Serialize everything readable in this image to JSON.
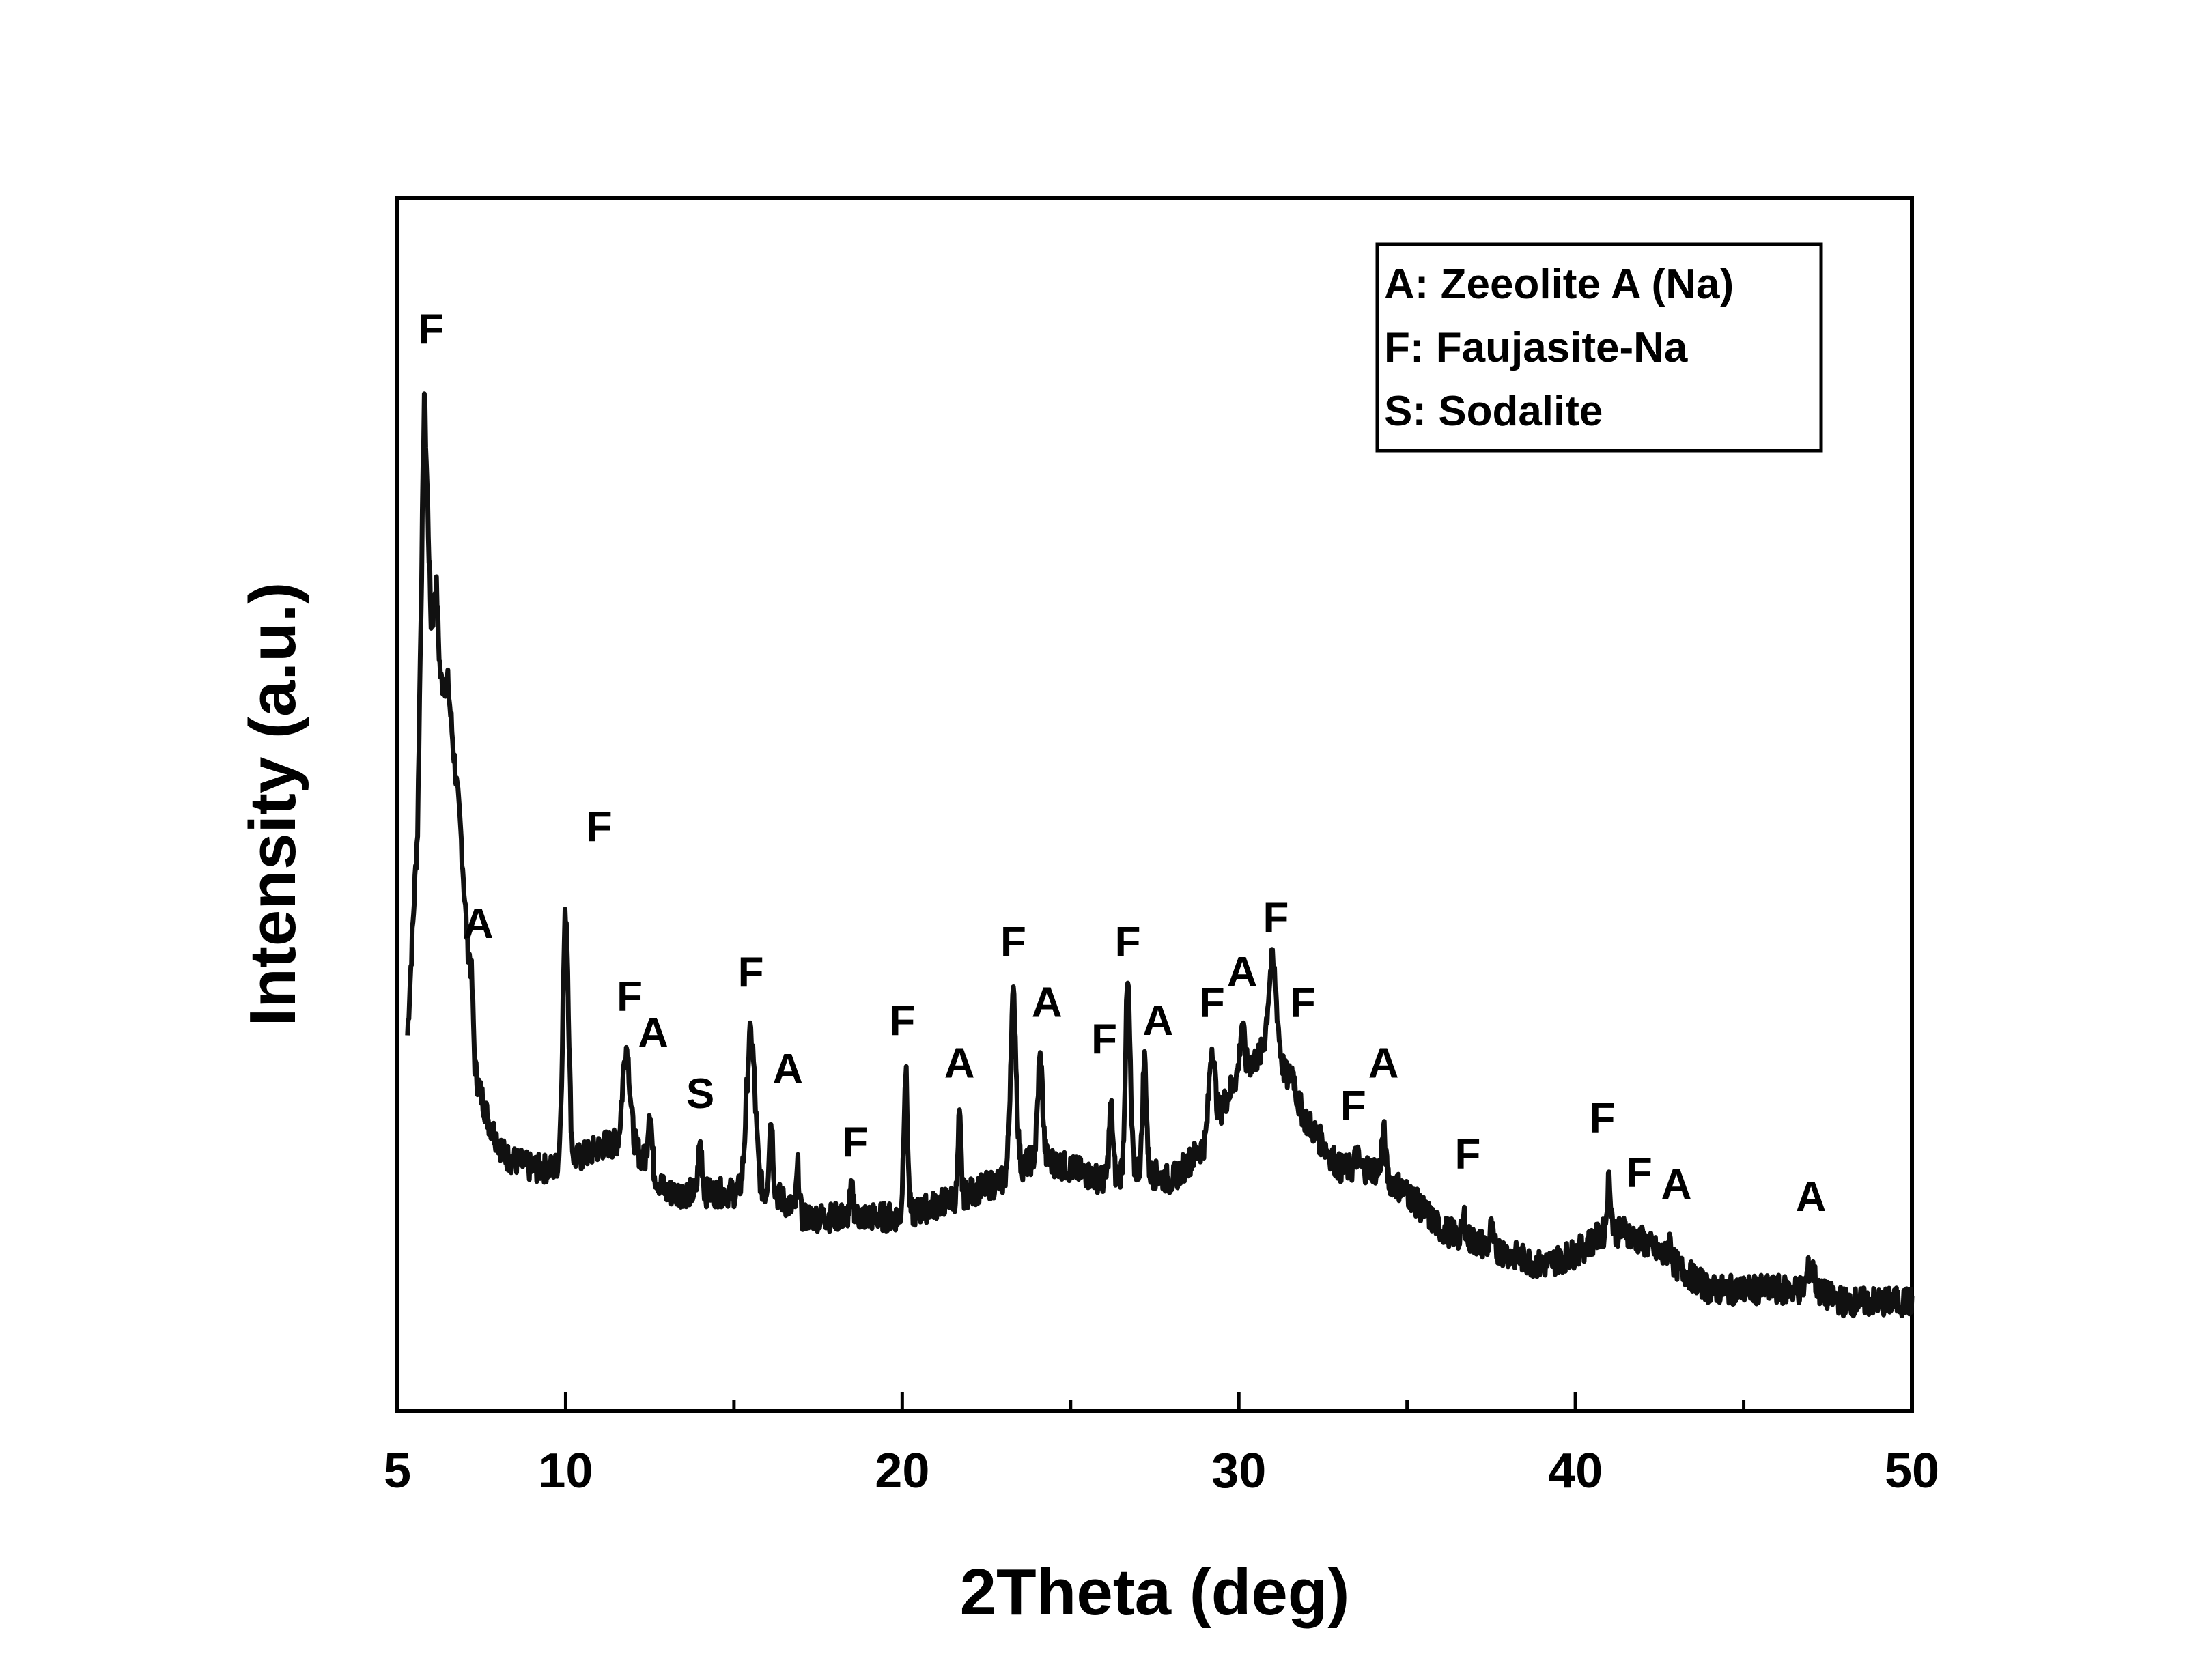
{
  "chart_data": {
    "type": "line",
    "title": "",
    "xlabel": "2Theta (deg)",
    "ylabel": "Intensity (a.u.)",
    "xlim": [
      5,
      50
    ],
    "ylim": [
      0,
      100
    ],
    "y_ticks_labeled": false,
    "grid": false,
    "x_ticks": [
      5,
      10,
      20,
      30,
      40,
      50
    ],
    "x_minor_ticks": [
      15,
      25,
      35,
      45
    ],
    "legend": {
      "placement": "top-right",
      "entries": [
        "A: Zeeolite A (Na)",
        "F: Faujasite-Na",
        "S: Sodalite"
      ]
    },
    "series": [
      {
        "color": "#111111",
        "baseline": [
          [
            5.3,
            31
          ],
          [
            5.6,
            48
          ],
          [
            5.8,
            84
          ],
          [
            6.0,
            65
          ],
          [
            6.3,
            60
          ],
          [
            6.5,
            60
          ],
          [
            6.9,
            47
          ],
          [
            7.3,
            28
          ],
          [
            7.7,
            24
          ],
          [
            8.2,
            21
          ],
          [
            9.0,
            20
          ],
          [
            9.6,
            20
          ],
          [
            10.5,
            21
          ],
          [
            11.2,
            22
          ],
          [
            12.0,
            22
          ],
          [
            13.0,
            18
          ],
          [
            14.0,
            18
          ],
          [
            15.0,
            18
          ],
          [
            16.2,
            18
          ],
          [
            17.0,
            16
          ],
          [
            18.0,
            16
          ],
          [
            19.0,
            16
          ],
          [
            20.0,
            16
          ],
          [
            21.0,
            17
          ],
          [
            22.0,
            18
          ],
          [
            23.0,
            19
          ],
          [
            24.0,
            21
          ],
          [
            25.0,
            20
          ],
          [
            26.0,
            19
          ],
          [
            27.0,
            20
          ],
          [
            28.0,
            19
          ],
          [
            29.0,
            22
          ],
          [
            30.0,
            28
          ],
          [
            31.0,
            30
          ],
          [
            32.0,
            24
          ],
          [
            33.0,
            20
          ],
          [
            34.0,
            20
          ],
          [
            35.0,
            18
          ],
          [
            36.0,
            15
          ],
          [
            37.0,
            14
          ],
          [
            38.0,
            13
          ],
          [
            39.0,
            12
          ],
          [
            40.0,
            13
          ],
          [
            41.0,
            15
          ],
          [
            42.0,
            14
          ],
          [
            43.0,
            12
          ],
          [
            44.0,
            10
          ],
          [
            45.0,
            10
          ],
          [
            46.0,
            10
          ],
          [
            47.0,
            10
          ],
          [
            48.0,
            9
          ],
          [
            49.0,
            9
          ],
          [
            50.0,
            9
          ]
        ],
        "peaks": [
          [
            5.8,
            84,
            0.08
          ],
          [
            6.15,
            68,
            0.08
          ],
          [
            7.2,
            36,
            0.08
          ],
          [
            10.0,
            41,
            0.12
          ],
          [
            11.8,
            30,
            0.15
          ],
          [
            12.5,
            25,
            0.08
          ],
          [
            14.0,
            22,
            0.08
          ],
          [
            15.5,
            31,
            0.18
          ],
          [
            16.1,
            24,
            0.08
          ],
          [
            16.9,
            20,
            0.06
          ],
          [
            18.5,
            18,
            0.08
          ],
          [
            20.1,
            28,
            0.08
          ],
          [
            21.7,
            24,
            0.06
          ],
          [
            23.3,
            34,
            0.12
          ],
          [
            24.1,
            29,
            0.1
          ],
          [
            26.2,
            25,
            0.08
          ],
          [
            26.7,
            35,
            0.1
          ],
          [
            27.2,
            29,
            0.08
          ],
          [
            29.2,
            30,
            0.12
          ],
          [
            30.1,
            32,
            0.08
          ],
          [
            31.0,
            37,
            0.18
          ],
          [
            31.6,
            28,
            0.1
          ],
          [
            33.5,
            21,
            0.08
          ],
          [
            34.3,
            23,
            0.08
          ],
          [
            36.7,
            16,
            0.06
          ],
          [
            37.5,
            15,
            0.06
          ],
          [
            41.0,
            19,
            0.08
          ],
          [
            41.5,
            15,
            0.1
          ],
          [
            42.8,
            14,
            0.08
          ],
          [
            47.0,
            12,
            0.15
          ]
        ],
        "noise_amplitude": 1.2
      }
    ],
    "annotations": [
      {
        "text": "F",
        "x": 6.0,
        "y": 88
      },
      {
        "text": "A",
        "x": 7.4,
        "y": 39
      },
      {
        "text": "F",
        "x": 11.0,
        "y": 47
      },
      {
        "text": "F",
        "x": 11.9,
        "y": 33
      },
      {
        "text": "A",
        "x": 12.6,
        "y": 30
      },
      {
        "text": "S",
        "x": 14.0,
        "y": 25
      },
      {
        "text": "F",
        "x": 15.5,
        "y": 35
      },
      {
        "text": "A",
        "x": 16.6,
        "y": 27
      },
      {
        "text": "F",
        "x": 18.6,
        "y": 21
      },
      {
        "text": "F",
        "x": 20.0,
        "y": 31
      },
      {
        "text": "A",
        "x": 21.7,
        "y": 27.5
      },
      {
        "text": "F",
        "x": 23.3,
        "y": 37.5
      },
      {
        "text": "A",
        "x": 24.3,
        "y": 32.5
      },
      {
        "text": "F",
        "x": 26.0,
        "y": 29.5
      },
      {
        "text": "F",
        "x": 26.7,
        "y": 37.5
      },
      {
        "text": "A",
        "x": 27.6,
        "y": 31
      },
      {
        "text": "F",
        "x": 29.2,
        "y": 32.5
      },
      {
        "text": "A",
        "x": 30.1,
        "y": 35
      },
      {
        "text": "F",
        "x": 31.1,
        "y": 39.5
      },
      {
        "text": "F",
        "x": 31.9,
        "y": 32.5
      },
      {
        "text": "F",
        "x": 33.4,
        "y": 24
      },
      {
        "text": "A",
        "x": 34.3,
        "y": 27.5
      },
      {
        "text": "F",
        "x": 36.8,
        "y": 20
      },
      {
        "text": "F",
        "x": 40.8,
        "y": 23
      },
      {
        "text": "F",
        "x": 41.9,
        "y": 18.5
      },
      {
        "text": "A",
        "x": 43.0,
        "y": 17.5
      },
      {
        "text": "A",
        "x": 47.0,
        "y": 16.5
      }
    ]
  }
}
